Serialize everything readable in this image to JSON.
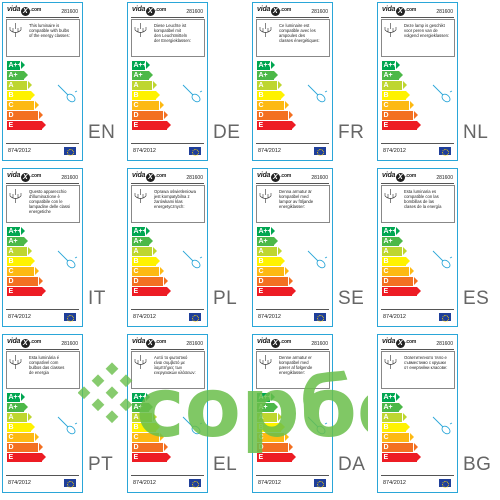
{
  "cards": [
    {
      "brand": "vida",
      "brand_mark": "X",
      "brand_tld": ".com",
      "product_code": "281600",
      "description": "This luminaire is\ncompatible with bulbs\nof the energy classes:",
      "classes": [
        "A++",
        "A+",
        "A",
        "B",
        "C",
        "D",
        "E"
      ],
      "regulation": "874/2012",
      "lang": "EN"
    },
    {
      "brand": "vida",
      "brand_mark": "X",
      "brand_tld": ".com",
      "product_code": "281600",
      "description": "Diese Leuchte ist\nkompatibel mit\nden Leuchtmitteln\nder Energieklassen:",
      "classes": [
        "A++",
        "A+",
        "A",
        "B",
        "C",
        "D",
        "E"
      ],
      "regulation": "874/2012",
      "lang": "DE"
    },
    {
      "brand": "vida",
      "brand_mark": "X",
      "brand_tld": ".com",
      "product_code": "281600",
      "description": "Ce luminaire est\ncompatible avec les\nampoules des\nclasses énergétiques:",
      "classes": [
        "A++",
        "A+",
        "A",
        "B",
        "C",
        "D",
        "E"
      ],
      "regulation": "874/2012",
      "lang": "FR"
    },
    {
      "brand": "vida",
      "brand_mark": "X",
      "brand_tld": ".com",
      "product_code": "281600",
      "description": "Deze lamp is geschikt\nvoor peren van de\nvolgend energieklassen:",
      "classes": [
        "A++",
        "A+",
        "A",
        "B",
        "C",
        "D",
        "E"
      ],
      "regulation": "874/2012",
      "lang": "NL"
    },
    {
      "brand": "vida",
      "brand_mark": "X",
      "brand_tld": ".com",
      "product_code": "281600",
      "description": "Questo apparecchio\nd'illuminazione è\ncompatibile con le\nlampadine delle classi\nenergetiche",
      "classes": [
        "A++",
        "A+",
        "A",
        "B",
        "C",
        "D",
        "E"
      ],
      "regulation": "874/2012",
      "lang": "IT"
    },
    {
      "brand": "vida",
      "brand_mark": "X",
      "brand_tld": ".com",
      "product_code": "281600",
      "description": "Oprawa oświetleniowa\njest kompatybilna z\nżarówkami klas\nenergetycznych:",
      "classes": [
        "A++",
        "A+",
        "A",
        "B",
        "C",
        "D",
        "E"
      ],
      "regulation": "874/2012",
      "lang": "PL"
    },
    {
      "brand": "vida",
      "brand_mark": "X",
      "brand_tld": ".com",
      "product_code": "281600",
      "description": "Denna armatur är\nkompatibel med\nlampor av följande\nenergiklasser:",
      "classes": [
        "A++",
        "A+",
        "A",
        "B",
        "C",
        "D",
        "E"
      ],
      "regulation": "874/2012",
      "lang": "SE"
    },
    {
      "brand": "vida",
      "brand_mark": "X",
      "brand_tld": ".com",
      "product_code": "281600",
      "description": "Esta luminaria es\ncompatible con las\nbombillas de las\nclases de la energía",
      "classes": [
        "A++",
        "A+",
        "A",
        "B",
        "C",
        "D",
        "E"
      ],
      "regulation": "874/2012",
      "lang": "ES"
    },
    {
      "brand": "vida",
      "brand_mark": "X",
      "brand_tld": ".com",
      "product_code": "281600",
      "description": "Esta luminária é\ncompatível com\nbulbos das classes\nde energia",
      "classes": [
        "A++",
        "A+",
        "A",
        "B",
        "C",
        "D",
        "E"
      ],
      "regulation": "874/2012",
      "lang": "PT"
    },
    {
      "brand": "vida",
      "brand_mark": "X",
      "brand_tld": ".com",
      "product_code": "281600",
      "description": "Αυτό το φωτιστικό\nείναι συμβατό με\nλαμπτήρες των\nενεργειακών κλάσεων:",
      "classes": [
        "A++",
        "A+",
        "A",
        "B",
        "C",
        "D",
        "E"
      ],
      "regulation": "874/2012",
      "lang": "EL"
    },
    {
      "brand": "vida",
      "brand_mark": "X",
      "brand_tld": ".com",
      "product_code": "281600",
      "description": "Denne armatur er\nkompatibel med\npærer af følgende\nenergiklasser:",
      "classes": [
        "A++",
        "A+",
        "A",
        "B",
        "C",
        "D",
        "E"
      ],
      "regulation": "874/2012",
      "lang": "DA"
    },
    {
      "brand": "vida",
      "brand_mark": "X",
      "brand_tld": ".com",
      "product_code": "281600",
      "description": "Осветителното тяло е\nсъвместимо с крушки\nот енергийни класове:",
      "classes": [
        "A++",
        "A+",
        "A",
        "B",
        "C",
        "D",
        "E"
      ],
      "regulation": "874/2012",
      "lang": "BG"
    }
  ],
  "class_colors": [
    "#00a651",
    "#4cb848",
    "#bed630",
    "#fff200",
    "#fdb913",
    "#f37021",
    "#ed1c24"
  ],
  "watermark": {
    "text": "сорбé",
    "color": "#6abf4b"
  }
}
